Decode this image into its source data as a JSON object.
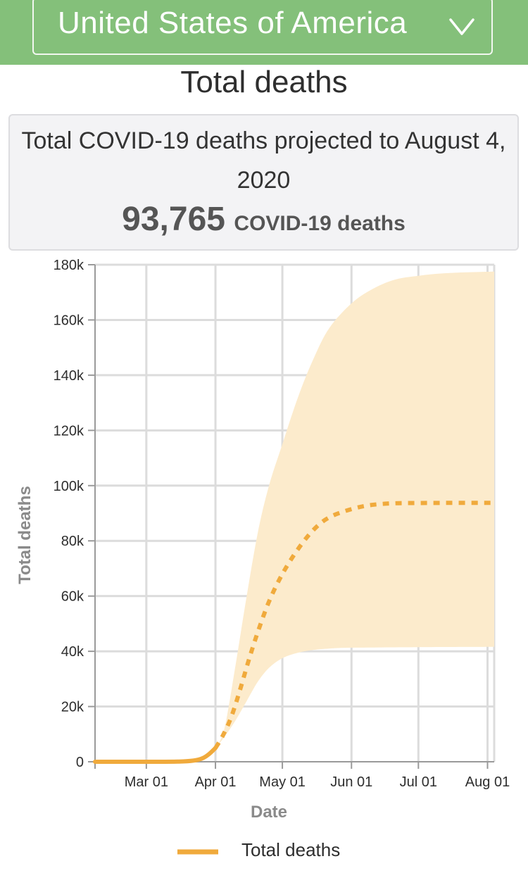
{
  "header": {
    "country": "United States of America",
    "bg_color": "#84c07a",
    "dropdown_icon": "chevron-down-icon"
  },
  "page_title": "Total deaths",
  "summary": {
    "text": "Total COVID-19 deaths projected to August 4, 2020",
    "value": "93,765",
    "unit": "COVID-19 deaths"
  },
  "chart_data": {
    "type": "line",
    "title": "",
    "xlabel": "Date",
    "ylabel": "Total deaths",
    "x_range": [
      "2020-02-07",
      "2020-08-04"
    ],
    "ylim": [
      0,
      180000
    ],
    "y_ticks": [
      {
        "value": 0,
        "label": "0"
      },
      {
        "value": 20000,
        "label": "20k"
      },
      {
        "value": 40000,
        "label": "40k"
      },
      {
        "value": 60000,
        "label": "60k"
      },
      {
        "value": 80000,
        "label": "80k"
      },
      {
        "value": 100000,
        "label": "100k"
      },
      {
        "value": 120000,
        "label": "120k"
      },
      {
        "value": 140000,
        "label": "140k"
      },
      {
        "value": 160000,
        "label": "160k"
      },
      {
        "value": 180000,
        "label": "180k"
      }
    ],
    "x_ticks": [
      {
        "date": "2020-03-01",
        "label": "Mar 01"
      },
      {
        "date": "2020-04-01",
        "label": "Apr 01"
      },
      {
        "date": "2020-05-01",
        "label": "May 01"
      },
      {
        "date": "2020-06-01",
        "label": "Jun 01"
      },
      {
        "date": "2020-07-01",
        "label": "Jul 01"
      },
      {
        "date": "2020-08-01",
        "label": "Aug 01"
      }
    ],
    "grid": true,
    "legend": {
      "position": "bottom",
      "label": "Total deaths"
    },
    "colors": {
      "line": "#f0aa3c",
      "band": "#fcebcc",
      "grid": "#dcdcdc",
      "axis": "#9a9a9a"
    },
    "series": [
      {
        "name": "Total deaths",
        "actual": [
          [
            "2020-02-07",
            0
          ],
          [
            "2020-03-01",
            0
          ],
          [
            "2020-03-15",
            50
          ],
          [
            "2020-03-22",
            400
          ],
          [
            "2020-03-26",
            1200
          ],
          [
            "2020-03-29",
            2700
          ],
          [
            "2020-04-01",
            5000
          ]
        ],
        "projected": [
          [
            "2020-04-01",
            5000
          ],
          [
            "2020-04-04",
            9000
          ],
          [
            "2020-04-08",
            16000
          ],
          [
            "2020-04-12",
            26000
          ],
          [
            "2020-04-16",
            37000
          ],
          [
            "2020-04-20",
            47000
          ],
          [
            "2020-04-25",
            58000
          ],
          [
            "2020-05-01",
            68000
          ],
          [
            "2020-05-08",
            77000
          ],
          [
            "2020-05-15",
            84000
          ],
          [
            "2020-05-22",
            88500
          ],
          [
            "2020-06-01",
            91500
          ],
          [
            "2020-06-10",
            93000
          ],
          [
            "2020-06-20",
            93600
          ],
          [
            "2020-07-01",
            93700
          ],
          [
            "2020-07-15",
            93750
          ],
          [
            "2020-08-04",
            93765
          ]
        ],
        "upper": [
          [
            "2020-04-01",
            5000
          ],
          [
            "2020-04-05",
            12000
          ],
          [
            "2020-04-10",
            35000
          ],
          [
            "2020-04-15",
            60000
          ],
          [
            "2020-04-20",
            83000
          ],
          [
            "2020-04-25",
            100000
          ],
          [
            "2020-05-01",
            115000
          ],
          [
            "2020-05-08",
            132000
          ],
          [
            "2020-05-15",
            146000
          ],
          [
            "2020-05-22",
            157000
          ],
          [
            "2020-06-01",
            166000
          ],
          [
            "2020-06-10",
            171000
          ],
          [
            "2020-06-20",
            174500
          ],
          [
            "2020-07-01",
            176000
          ],
          [
            "2020-07-15",
            177000
          ],
          [
            "2020-08-04",
            177500
          ]
        ],
        "lower": [
          [
            "2020-04-01",
            5000
          ],
          [
            "2020-04-05",
            9000
          ],
          [
            "2020-04-10",
            15000
          ],
          [
            "2020-04-15",
            22000
          ],
          [
            "2020-04-20",
            29000
          ],
          [
            "2020-04-25",
            34000
          ],
          [
            "2020-05-01",
            37500
          ],
          [
            "2020-05-08",
            39500
          ],
          [
            "2020-05-15",
            40500
          ],
          [
            "2020-05-22",
            41000
          ],
          [
            "2020-06-01",
            41300
          ],
          [
            "2020-07-01",
            41500
          ],
          [
            "2020-08-04",
            41600
          ]
        ]
      }
    ]
  }
}
